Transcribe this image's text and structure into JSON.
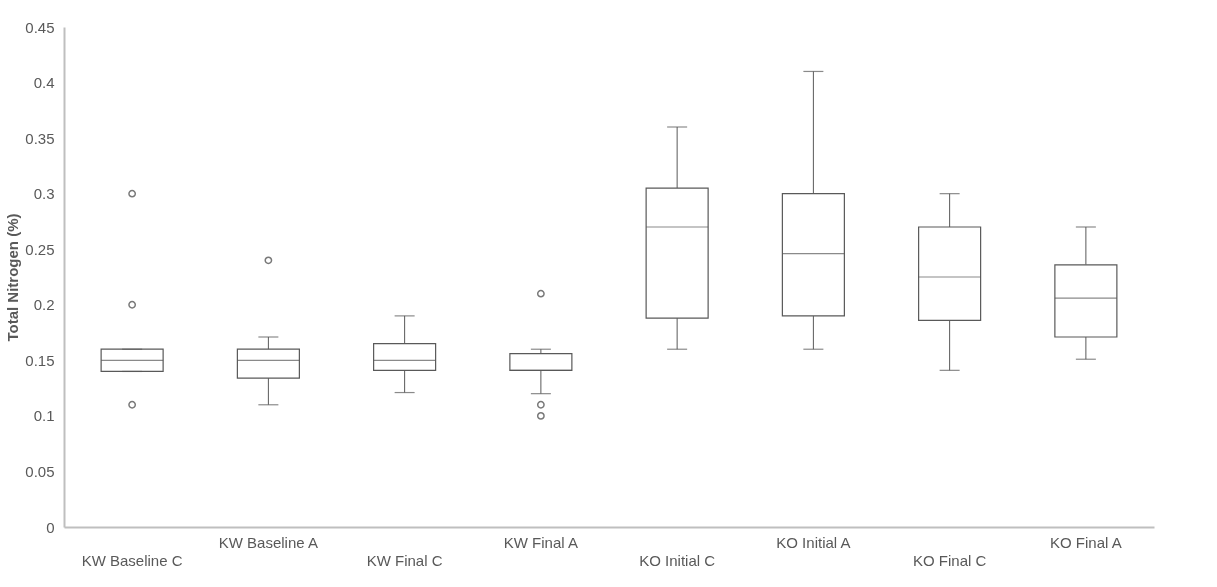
{
  "chart_data": {
    "type": "box",
    "ylabel": "Total Nitrogen (%)",
    "categories": [
      "KW Baseline C",
      "KW Baseline A",
      "KW Final C",
      "KW Final A",
      "KO Initial C",
      "KO Initial A",
      "KO Final C",
      "KO Final A"
    ],
    "boxes": [
      {
        "low": 0.14,
        "q1": 0.14,
        "median": 0.15,
        "q3": 0.16,
        "high": 0.16,
        "outliers": [
          0.3,
          0.2,
          0.11
        ]
      },
      {
        "low": 0.11,
        "q1": 0.134,
        "median": 0.15,
        "q3": 0.16,
        "high": 0.171,
        "outliers": [
          0.24
        ]
      },
      {
        "low": 0.121,
        "q1": 0.141,
        "median": 0.15,
        "q3": 0.165,
        "high": 0.19
      },
      {
        "low": 0.12,
        "q1": 0.141,
        "median": 0.141,
        "q3": 0.156,
        "high": 0.16,
        "outliers": [
          0.21,
          0.11,
          0.1
        ]
      },
      {
        "low": 0.16,
        "q1": 0.188,
        "median": 0.27,
        "q3": 0.305,
        "high": 0.36
      },
      {
        "low": 0.16,
        "q1": 0.19,
        "median": 0.246,
        "q3": 0.3,
        "high": 0.41
      },
      {
        "low": 0.141,
        "q1": 0.186,
        "median": 0.225,
        "q3": 0.27,
        "high": 0.3
      },
      {
        "low": 0.151,
        "q1": 0.171,
        "median": 0.206,
        "q3": 0.236,
        "high": 0.27
      }
    ],
    "color": "#595959",
    "ylim": [
      0,
      0.45
    ],
    "yticks": [
      0,
      0.05,
      0.1,
      0.15,
      0.2,
      0.25,
      0.3,
      0.35,
      0.4,
      0.45
    ],
    "grid": false,
    "legend": false
  }
}
